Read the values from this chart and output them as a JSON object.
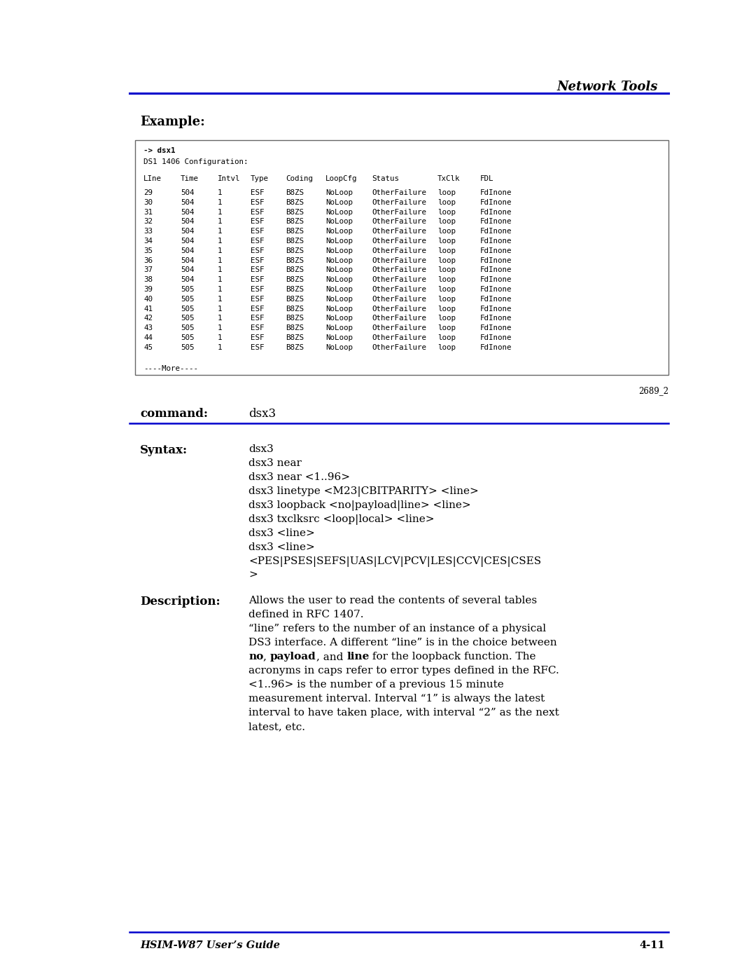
{
  "header_italic_bold": "Network Tools",
  "example_label": "Example:",
  "box_prompt": "-> dsx1",
  "box_ds1_label": "DS1 1406 Configuration:",
  "box_columns": [
    "LIne",
    "Time",
    "Intvl",
    "Type",
    "Coding",
    "LoopCfg",
    "Status",
    "TxClk",
    "FDL"
  ],
  "box_rows": [
    [
      "29",
      "504",
      "1",
      "ESF",
      "B8ZS",
      "NoLoop",
      "OtherFailure",
      "loop",
      "FdInone"
    ],
    [
      "30",
      "504",
      "1",
      "ESF",
      "B8ZS",
      "NoLoop",
      "OtherFailure",
      "loop",
      "FdInone"
    ],
    [
      "31",
      "504",
      "1",
      "ESF",
      "B8ZS",
      "NoLoop",
      "OtherFailure",
      "loop",
      "FdInone"
    ],
    [
      "32",
      "504",
      "1",
      "ESF",
      "B8ZS",
      "NoLoop",
      "OtherFailure",
      "loop",
      "FdInone"
    ],
    [
      "33",
      "504",
      "1",
      "ESF",
      "B8ZS",
      "NoLoop",
      "OtherFailure",
      "loop",
      "FdInone"
    ],
    [
      "34",
      "504",
      "1",
      "ESF",
      "B8ZS",
      "NoLoop",
      "OtherFailure",
      "loop",
      "FdInone"
    ],
    [
      "35",
      "504",
      "1",
      "ESF",
      "B8ZS",
      "NoLoop",
      "OtherFailure",
      "loop",
      "FdInone"
    ],
    [
      "36",
      "504",
      "1",
      "ESF",
      "B8ZS",
      "NoLoop",
      "OtherFailure",
      "loop",
      "FdInone"
    ],
    [
      "37",
      "504",
      "1",
      "ESF",
      "B8ZS",
      "NoLoop",
      "OtherFailure",
      "loop",
      "FdInone"
    ],
    [
      "38",
      "504",
      "1",
      "ESF",
      "B8ZS",
      "NoLoop",
      "OtherFailure",
      "loop",
      "FdInone"
    ],
    [
      "39",
      "505",
      "1",
      "ESF",
      "B8ZS",
      "NoLoop",
      "OtherFailure",
      "loop",
      "FdInone"
    ],
    [
      "40",
      "505",
      "1",
      "ESF",
      "B8ZS",
      "NoLoop",
      "OtherFailure",
      "loop",
      "FdInone"
    ],
    [
      "41",
      "505",
      "1",
      "ESF",
      "B8ZS",
      "NoLoop",
      "OtherFailure",
      "loop",
      "FdInone"
    ],
    [
      "42",
      "505",
      "1",
      "ESF",
      "B8ZS",
      "NoLoop",
      "OtherFailure",
      "loop",
      "FdInone"
    ],
    [
      "43",
      "505",
      "1",
      "ESF",
      "B8ZS",
      "NoLoop",
      "OtherFailure",
      "loop",
      "FdInone"
    ],
    [
      "44",
      "505",
      "1",
      "ESF",
      "B8ZS",
      "NoLoop",
      "OtherFailure",
      "loop",
      "FdInone"
    ],
    [
      "45",
      "505",
      "1",
      "ESF",
      "B8ZS",
      "NoLoop",
      "OtherFailure",
      "loop",
      "FdInone"
    ]
  ],
  "box_more": "----More----",
  "box_fig_num": "2689_2",
  "command_label": "command:",
  "command_value": "dsx3",
  "syntax_label": "Syntax:",
  "syntax_lines": [
    "dsx3",
    "dsx3 near",
    "dsx3 near <1..96>",
    "dsx3 linetype <M23|CBITPARITY> <line>",
    "dsx3 loopback <no|payload|line> <line>",
    "dsx3 txclksrc <loop|local> <line>",
    "dsx3 <line>",
    "dsx3 <line>",
    "<PES|PSES|SEFS|UAS|LCV|PCV|LES|CCV|CES|CSES",
    ">"
  ],
  "description_label": "Description:",
  "desc_line1": "Allows the user to read the contents of several tables",
  "desc_line2": "defined in RFC 1407.",
  "desc_line3": "“line” refers to the number of an instance of a physical",
  "desc_line4": "DS3 interface. A different “line” is in the choice between",
  "desc_line5_parts": [
    [
      "no",
      true
    ],
    [
      ", ",
      false
    ],
    [
      "payload",
      true
    ],
    [
      ", and ",
      false
    ],
    [
      "line",
      true
    ],
    [
      " for the loopback function. The",
      false
    ]
  ],
  "desc_line6": "acronyms in caps refer to error types defined in the RFC.",
  "desc_line7": "<1..96> is the number of a previous 15 minute",
  "desc_line8": "measurement interval. Interval “1” is always the latest",
  "desc_line9": "interval to have taken place, with interval “2” as the next",
  "desc_line10": "latest, etc.",
  "footer_left": "HSIM-W87 User’s Guide",
  "footer_right": "4-11",
  "blue_color": "#0000CC"
}
